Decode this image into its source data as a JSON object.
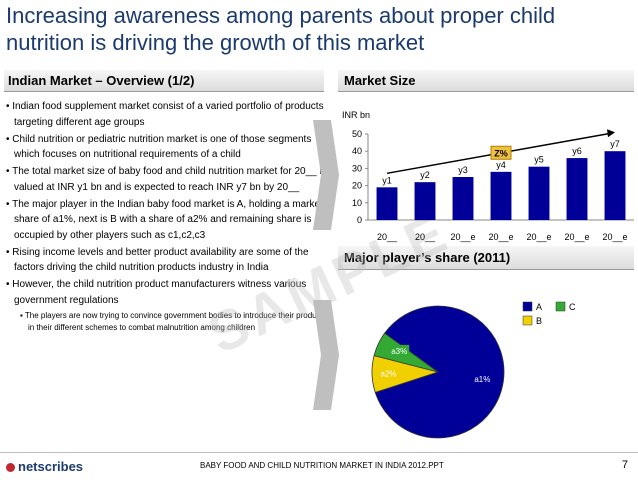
{
  "title_line1": "Increasing awareness among parents about proper child",
  "title_line2": "nutrition is driving the growth of this market",
  "left_header": "Indian Market – Overview (1/2)",
  "right_header1": "Market Size",
  "right_header2": "Major player’s share (2011)",
  "bullets": [
    "• Indian food supplement market consist of a varied portfolio of products targeting different age groups",
    "• Child nutrition or pediatric nutrition market is one of those segments which focuses on nutritional requirements of a child",
    "• The total market size of baby food and child nutrition market for 20__ is valued at INR y1 bn and is expected to reach INR y7 bn by 20__",
    "• The major player in the Indian baby food market is A, holding a market share of a1%, next is B with a share of a2% and remaining share is occupied by other players such as c1,c2,c3",
    "• Rising income levels and better product availability are some of the factors driving the child nutrition products industry in India",
    "• However, the child nutrition product manufacturers witness various government regulations"
  ],
  "sub_bullet": "▪ The players are now trying to convince government bodies to introduce their products in their different schemes to combat malnutrition among children",
  "watermark": "SAMPLE",
  "footer": {
    "logo": "netscribes",
    "note": "BABY FOOD AND CHILD NUTRITION MARKET IN INDIA 2012.PPT",
    "page": "7"
  },
  "colors": {
    "title": "#1b3a6e",
    "bar": "#000099",
    "pie_b": "#f0d000",
    "pie_c": "#33aa33",
    "badge": "#f0c040"
  },
  "chart_data": [
    {
      "type": "bar",
      "ylabel": "INR bn",
      "ylim": [
        0,
        50
      ],
      "yticks": [
        0,
        10,
        20,
        30,
        40,
        50
      ],
      "categories": [
        "20__",
        "20__",
        "20__e",
        "20__e",
        "20__e",
        "20__e",
        "20__e"
      ],
      "values": [
        19,
        22,
        25,
        28,
        31,
        36,
        40
      ],
      "data_labels": [
        "y1",
        "y2",
        "y3",
        "y4",
        "y5",
        "y6",
        "y7"
      ],
      "annotation": "Z%",
      "grid": false
    },
    {
      "type": "pie",
      "labels": [
        "A",
        "B",
        "C"
      ],
      "values": [
        85,
        9,
        6
      ],
      "data_labels": [
        "a1%",
        "a2%",
        "a3%"
      ],
      "legend": "top-right"
    }
  ]
}
